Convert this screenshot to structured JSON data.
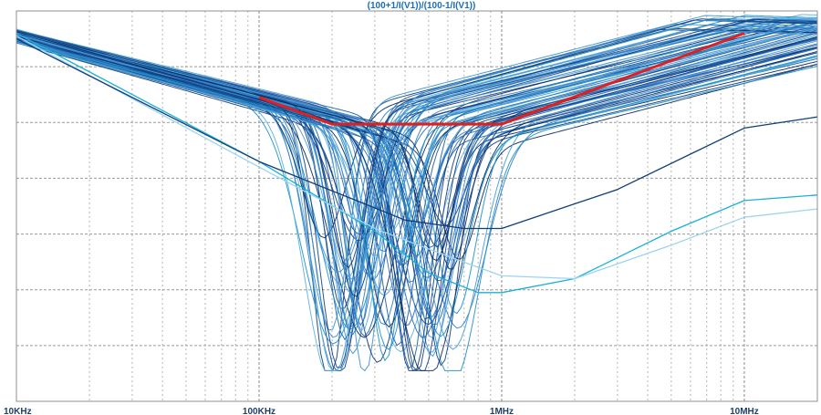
{
  "chart_data": {
    "type": "line",
    "title": "(100+1/I(V1))/(100-1/I(V1))",
    "x_scale": "log",
    "xlim": [
      10000,
      20000000
    ],
    "ylim": [
      0,
      7
    ],
    "x_tick_labels": [
      {
        "value": 10000,
        "label": "10KHz"
      },
      {
        "value": 100000,
        "label": "100KHz"
      },
      {
        "value": 1000000,
        "label": "1MHz"
      },
      {
        "value": 10000000,
        "label": "10MHz"
      }
    ],
    "y_tick_labels": [],
    "grid": true,
    "limit_line": {
      "color": "#e02020",
      "points": [
        [
          100000,
          5.45
        ],
        [
          200000,
          4.97
        ],
        [
          1000000,
          4.97
        ],
        [
          10000000,
          6.6
        ]
      ]
    },
    "family_colors": [
      "#1a5fa8",
      "#2f7cc4",
      "#0f3d7a",
      "#3a8fd0",
      "#5bb0e0",
      "#0a2a5e",
      "#2a6bb8",
      "#1b8fcc",
      "#4a9ad6",
      "#123f86"
    ],
    "outlier_curves": [
      {
        "color": "#1ab0d8",
        "points": [
          [
            10000,
            6.6
          ],
          [
            100000,
            4.3
          ],
          [
            300000,
            3.05
          ],
          [
            500000,
            2.3
          ],
          [
            800000,
            1.95
          ],
          [
            1000000,
            1.95
          ],
          [
            2000000,
            2.2
          ],
          [
            5000000,
            3.05
          ],
          [
            10000000,
            3.6
          ],
          [
            20000000,
            3.7
          ]
        ]
      },
      {
        "color": "#9cd4ef",
        "points": [
          [
            10000,
            6.55
          ],
          [
            100000,
            4.2
          ],
          [
            300000,
            3.1
          ],
          [
            600000,
            2.6
          ],
          [
            1000000,
            2.25
          ],
          [
            2000000,
            2.2
          ],
          [
            5000000,
            2.8
          ],
          [
            10000000,
            3.3
          ],
          [
            20000000,
            3.45
          ]
        ]
      },
      {
        "color": "#0f3d7a",
        "points": [
          [
            10000,
            6.5
          ],
          [
            100000,
            4.3
          ],
          [
            400000,
            3.25
          ],
          [
            700000,
            3.1
          ],
          [
            1000000,
            3.1
          ],
          [
            3000000,
            3.8
          ],
          [
            10000000,
            4.9
          ],
          [
            20000000,
            5.1
          ]
        ]
      }
    ]
  }
}
